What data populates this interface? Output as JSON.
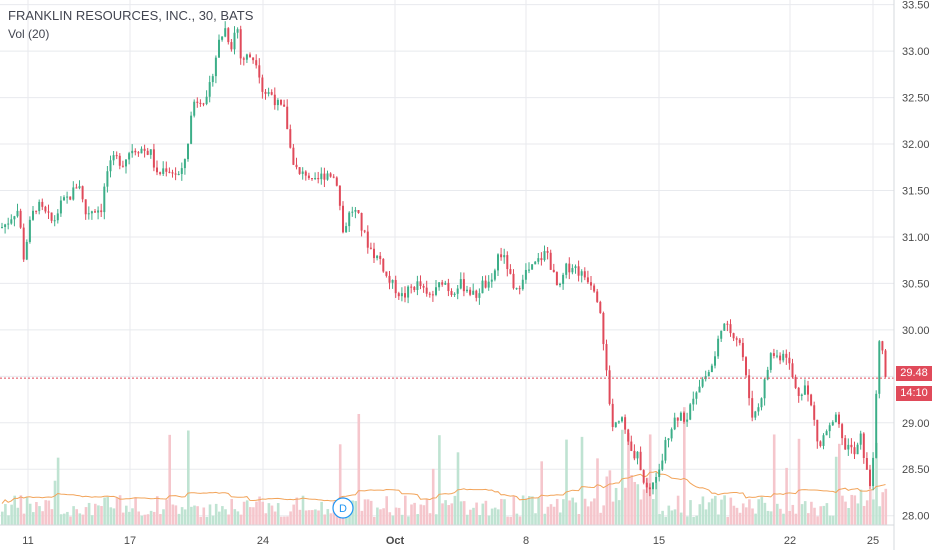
{
  "legend": {
    "title": "FRANKLIN RESOURCES, INC., 30, BATS",
    "volume": "Vol (20)"
  },
  "price_tag": {
    "last": "29.48",
    "countdown": "14:10",
    "color": "#e04a5a"
  },
  "event_marker": {
    "label": "D",
    "color": "#2196f3"
  },
  "colors": {
    "up": "#3cae88",
    "down": "#e04a5a",
    "grid": "#e8eaee",
    "ma": "#f2a45a",
    "vol_up": "#bfe3d2",
    "vol_down": "#f5c6cc"
  },
  "chart_data": {
    "type": "candlestick",
    "x_ticks": [
      "11",
      "17",
      "24",
      "Oct",
      "8",
      "15",
      "22",
      "25"
    ],
    "y_ticks": [
      "33.50",
      "33.00",
      "32.50",
      "32.00",
      "31.50",
      "31.00",
      "30.50",
      "30.00",
      "29.50",
      "29.00",
      "28.50",
      "28.00"
    ],
    "ylim": [
      27.9,
      33.55
    ],
    "last_price": 29.48,
    "path": [
      [
        0,
        31.1
      ],
      [
        6,
        31.15
      ],
      [
        12,
        31.25
      ],
      [
        18,
        31.3
      ],
      [
        22,
        30.75
      ],
      [
        30,
        31.2
      ],
      [
        36,
        31.35
      ],
      [
        44,
        31.25
      ],
      [
        52,
        31.15
      ],
      [
        60,
        31.35
      ],
      [
        70,
        31.45
      ],
      [
        78,
        31.6
      ],
      [
        84,
        31.25
      ],
      [
        92,
        31.3
      ],
      [
        100,
        31.3
      ],
      [
        106,
        31.7
      ],
      [
        114,
        31.85
      ],
      [
        122,
        31.8
      ],
      [
        130,
        31.95
      ],
      [
        140,
        31.95
      ],
      [
        150,
        31.9
      ],
      [
        156,
        31.65
      ],
      [
        164,
        31.75
      ],
      [
        172,
        31.7
      ],
      [
        180,
        31.65
      ],
      [
        186,
        31.95
      ],
      [
        192,
        32.45
      ],
      [
        200,
        32.5
      ],
      [
        206,
        32.45
      ],
      [
        212,
        32.8
      ],
      [
        218,
        33.1
      ],
      [
        224,
        33.25
      ],
      [
        230,
        33.05
      ],
      [
        236,
        33.3
      ],
      [
        240,
        32.9
      ],
      [
        248,
        32.95
      ],
      [
        256,
        32.9
      ],
      [
        262,
        32.55
      ],
      [
        270,
        32.55
      ],
      [
        278,
        32.4
      ],
      [
        284,
        32.35
      ],
      [
        290,
        31.9
      ],
      [
        298,
        31.65
      ],
      [
        306,
        31.7
      ],
      [
        312,
        31.55
      ],
      [
        320,
        31.65
      ],
      [
        328,
        31.7
      ],
      [
        336,
        31.6
      ],
      [
        342,
        31.05
      ],
      [
        350,
        31.3
      ],
      [
        356,
        31.25
      ],
      [
        362,
        31.05
      ],
      [
        368,
        30.9
      ],
      [
        374,
        30.8
      ],
      [
        380,
        30.75
      ],
      [
        386,
        30.55
      ],
      [
        394,
        30.45
      ],
      [
        402,
        30.35
      ],
      [
        410,
        30.45
      ],
      [
        418,
        30.5
      ],
      [
        426,
        30.35
      ],
      [
        434,
        30.4
      ],
      [
        442,
        30.55
      ],
      [
        450,
        30.4
      ],
      [
        458,
        30.5
      ],
      [
        466,
        30.45
      ],
      [
        474,
        30.35
      ],
      [
        482,
        30.5
      ],
      [
        490,
        30.45
      ],
      [
        498,
        30.85
      ],
      [
        506,
        30.7
      ],
      [
        514,
        30.35
      ],
      [
        522,
        30.6
      ],
      [
        530,
        30.65
      ],
      [
        538,
        30.75
      ],
      [
        546,
        30.85
      ],
      [
        552,
        30.6
      ],
      [
        558,
        30.4
      ],
      [
        564,
        30.65
      ],
      [
        572,
        30.7
      ],
      [
        580,
        30.6
      ],
      [
        588,
        30.55
      ],
      [
        594,
        30.45
      ],
      [
        600,
        30.2
      ],
      [
        606,
        29.45
      ],
      [
        612,
        28.95
      ],
      [
        620,
        29.1
      ],
      [
        626,
        28.85
      ],
      [
        632,
        28.6
      ],
      [
        638,
        28.65
      ],
      [
        642,
        28.35
      ],
      [
        648,
        28.25
      ],
      [
        654,
        28.45
      ],
      [
        660,
        28.55
      ],
      [
        666,
        28.85
      ],
      [
        674,
        29.05
      ],
      [
        680,
        29.1
      ],
      [
        686,
        29.0
      ],
      [
        692,
        29.3
      ],
      [
        700,
        29.45
      ],
      [
        708,
        29.55
      ],
      [
        714,
        29.7
      ],
      [
        720,
        30.05
      ],
      [
        728,
        30.0
      ],
      [
        734,
        29.95
      ],
      [
        740,
        29.85
      ],
      [
        746,
        29.4
      ],
      [
        752,
        29.05
      ],
      [
        758,
        29.2
      ],
      [
        764,
        29.45
      ],
      [
        770,
        29.75
      ],
      [
        778,
        29.7
      ],
      [
        784,
        29.8
      ],
      [
        790,
        29.55
      ],
      [
        796,
        29.3
      ],
      [
        804,
        29.4
      ],
      [
        812,
        29.1
      ],
      [
        818,
        28.7
      ],
      [
        824,
        28.9
      ],
      [
        830,
        28.95
      ],
      [
        836,
        29.05
      ],
      [
        842,
        28.75
      ],
      [
        848,
        28.75
      ],
      [
        854,
        28.65
      ],
      [
        860,
        28.85
      ],
      [
        866,
        28.45
      ],
      [
        870,
        28.3
      ],
      [
        874,
        29.0
      ],
      [
        878,
        29.85
      ],
      [
        882,
        29.75
      ],
      [
        885,
        29.45
      ]
    ]
  }
}
